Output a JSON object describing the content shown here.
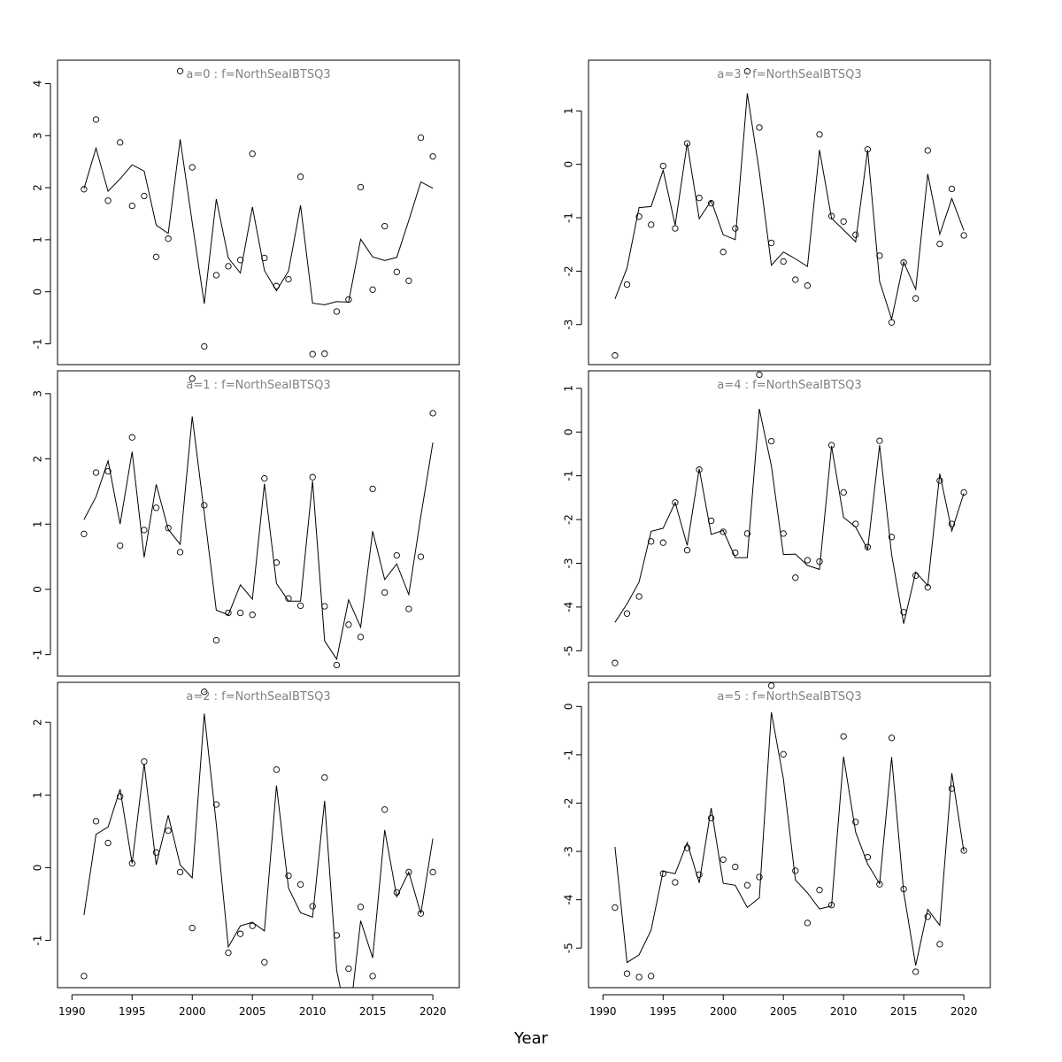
{
  "figure": {
    "xlabel": "Year"
  },
  "chart_data": [
    {
      "type": "line",
      "title": "a=0  :  f=NorthSeaIBTSQ3",
      "x": [
        1991,
        1992,
        1993,
        1994,
        1995,
        1996,
        1997,
        1998,
        1999,
        2000,
        2001,
        2002,
        2003,
        2004,
        2005,
        2006,
        2007,
        2008,
        2009,
        2010,
        2011,
        2012,
        2013,
        2014,
        2015,
        2016,
        2017,
        2018,
        2019,
        2020
      ],
      "series": [
        {
          "kind": "line",
          "values": [
            1.98,
            2.76,
            1.93,
            2.17,
            2.44,
            2.32,
            1.28,
            1.12,
            2.93,
            1.33,
            -0.23,
            1.78,
            0.65,
            0.36,
            1.63,
            0.41,
            0.02,
            0.4,
            1.66,
            -0.22,
            -0.25,
            -0.19,
            -0.2,
            1.01,
            0.67,
            0.6,
            0.66,
            1.37,
            2.11,
            1.99
          ]
        },
        {
          "kind": "points",
          "values": [
            1.97,
            3.31,
            1.75,
            2.87,
            1.65,
            1.84,
            0.67,
            1.02,
            4.24,
            2.39,
            -1.05,
            0.32,
            0.49,
            0.61,
            2.65,
            0.65,
            0.11,
            0.24,
            2.21,
            -1.2,
            -1.19,
            -0.38,
            -0.15,
            2.01,
            0.04,
            1.26,
            0.38,
            0.21,
            2.96,
            2.6
          ]
        }
      ],
      "xlim": [
        1988.8,
        2022.2
      ],
      "ylim": [
        -1.4,
        4.45
      ],
      "yticks": [
        -1,
        0,
        1,
        2,
        3,
        4
      ],
      "grid": false
    },
    {
      "type": "line",
      "title": "a=3  :  f=NorthSeaIBTSQ3",
      "x": [
        1991,
        1992,
        1993,
        1994,
        1995,
        1996,
        1997,
        1998,
        1999,
        2000,
        2001,
        2002,
        2003,
        2004,
        2005,
        2006,
        2007,
        2008,
        2009,
        2010,
        2011,
        2012,
        2013,
        2014,
        2015,
        2016,
        2017,
        2018,
        2019,
        2020
      ],
      "series": [
        {
          "kind": "line",
          "values": [
            -2.52,
            -1.94,
            -0.81,
            -0.79,
            -0.11,
            -1.14,
            0.39,
            -1.02,
            -0.68,
            -1.32,
            -1.41,
            1.33,
            -0.14,
            -1.89,
            -1.64,
            -1.77,
            -1.91,
            0.27,
            -1.01,
            -1.23,
            -1.45,
            0.27,
            -2.19,
            -2.9,
            -1.83,
            -2.34,
            -0.18,
            -1.31,
            -0.64,
            -1.24
          ]
        },
        {
          "kind": "points",
          "values": [
            -3.58,
            -2.25,
            -0.98,
            -1.13,
            -0.03,
            -1.2,
            0.39,
            -0.63,
            -0.73,
            -1.64,
            -1.2,
            1.74,
            0.69,
            -1.47,
            -1.82,
            -2.16,
            -2.27,
            0.56,
            -0.97,
            -1.07,
            -1.32,
            0.28,
            -1.71,
            -2.96,
            -1.84,
            -2.51,
            0.26,
            -1.49,
            -0.46,
            -1.33
          ]
        }
      ],
      "xlim": [
        1988.8,
        2022.2
      ],
      "ylim": [
        -3.75,
        1.95
      ],
      "yticks": [
        -3,
        -2,
        -1,
        0,
        1
      ],
      "grid": false
    },
    {
      "type": "line",
      "title": "a=1  :  f=NorthSeaIBTSQ3",
      "x": [
        1991,
        1992,
        1993,
        1994,
        1995,
        1996,
        1997,
        1998,
        1999,
        2000,
        2001,
        2002,
        2003,
        2004,
        2005,
        2006,
        2007,
        2008,
        2009,
        2010,
        2011,
        2012,
        2013,
        2014,
        2015,
        2016,
        2017,
        2018,
        2019,
        2020
      ],
      "series": [
        {
          "kind": "line",
          "values": [
            1.07,
            1.42,
            1.97,
            1.0,
            2.11,
            0.49,
            1.61,
            0.92,
            0.69,
            2.65,
            1.17,
            -0.32,
            -0.39,
            0.07,
            -0.15,
            1.62,
            0.09,
            -0.18,
            -0.18,
            1.66,
            -0.79,
            -1.07,
            -0.16,
            -0.58,
            0.89,
            0.15,
            0.39,
            -0.08,
            1.12,
            2.25
          ]
        },
        {
          "kind": "points",
          "values": [
            0.85,
            1.79,
            1.81,
            0.67,
            2.33,
            0.91,
            1.25,
            0.94,
            0.57,
            3.23,
            1.29,
            -0.78,
            -0.36,
            -0.36,
            -0.39,
            1.7,
            0.41,
            -0.14,
            -0.25,
            1.72,
            -0.26,
            -1.16,
            -0.54,
            -0.73,
            1.54,
            -0.05,
            0.52,
            -0.3,
            0.5,
            2.7
          ]
        }
      ],
      "xlim": [
        1988.8,
        2022.2
      ],
      "ylim": [
        -1.33,
        3.35
      ],
      "yticks": [
        -1,
        0,
        1,
        2,
        3
      ],
      "grid": false
    },
    {
      "type": "line",
      "title": "a=4  :  f=NorthSeaIBTSQ3",
      "x": [
        1991,
        1992,
        1993,
        1994,
        1995,
        1996,
        1997,
        1998,
        1999,
        2000,
        2001,
        2002,
        2003,
        2004,
        2005,
        2006,
        2007,
        2008,
        2009,
        2010,
        2011,
        2012,
        2013,
        2014,
        2015,
        2016,
        2017,
        2018,
        2019,
        2020
      ],
      "series": [
        {
          "kind": "line",
          "values": [
            -4.35,
            -3.93,
            -3.43,
            -2.27,
            -2.2,
            -1.61,
            -2.59,
            -0.84,
            -2.34,
            -2.25,
            -2.87,
            -2.87,
            0.53,
            -0.77,
            -2.8,
            -2.79,
            -3.05,
            -3.14,
            -0.32,
            -1.95,
            -2.17,
            -2.68,
            -0.3,
            -2.8,
            -4.38,
            -3.2,
            -3.51,
            -0.95,
            -2.26,
            -1.4
          ]
        },
        {
          "kind": "points",
          "values": [
            -5.28,
            -4.15,
            -3.76,
            -2.5,
            -2.53,
            -1.61,
            -2.7,
            -0.86,
            -2.03,
            -2.28,
            -2.76,
            -2.32,
            1.31,
            -0.21,
            -2.32,
            -3.33,
            -2.93,
            -2.96,
            -0.3,
            -1.38,
            -2.1,
            -2.63,
            -0.2,
            -2.4,
            -4.12,
            -3.28,
            -3.55,
            -1.11,
            -2.1,
            -1.38
          ]
        }
      ],
      "xlim": [
        1988.8,
        2022.2
      ],
      "ylim": [
        -5.58,
        1.4
      ],
      "yticks": [
        -5,
        -4,
        -3,
        -2,
        -1,
        0,
        1
      ],
      "grid": false
    },
    {
      "type": "line",
      "title": "a=2  :  f=NorthSeaIBTSQ3",
      "x": [
        1991,
        1992,
        1993,
        1994,
        1995,
        1996,
        1997,
        1998,
        1999,
        2000,
        2001,
        2002,
        2003,
        2004,
        2005,
        2006,
        2007,
        2008,
        2009,
        2010,
        2011,
        2012,
        2013,
        2014,
        2015,
        2016,
        2017,
        2018,
        2019,
        2020
      ],
      "series": [
        {
          "kind": "line",
          "values": [
            -0.65,
            0.46,
            0.56,
            1.08,
            0.06,
            1.43,
            0.04,
            0.72,
            0.04,
            -0.14,
            2.12,
            0.6,
            -1.09,
            -0.8,
            -0.75,
            -0.87,
            1.13,
            -0.28,
            -0.62,
            -0.68,
            0.92,
            -1.41,
            -2.2,
            -0.73,
            -1.24,
            0.52,
            -0.4,
            -0.06,
            -0.63,
            0.4
          ]
        },
        {
          "kind": "points",
          "values": [
            -1.49,
            0.64,
            0.34,
            0.98,
            0.06,
            1.46,
            0.21,
            0.51,
            -0.06,
            -0.83,
            2.42,
            0.87,
            -1.17,
            -0.91,
            -0.8,
            -1.3,
            1.35,
            -0.11,
            -0.23,
            -0.53,
            1.24,
            -0.93,
            -1.39,
            -0.54,
            -1.49,
            0.8,
            -0.34,
            -0.06,
            -0.63,
            -0.06
          ]
        }
      ],
      "xlim": [
        1988.8,
        2022.2
      ],
      "ylim": [
        -1.65,
        2.55
      ],
      "yticks": [
        -1,
        0,
        1,
        2
      ],
      "grid": false
    },
    {
      "type": "line",
      "title": "a=5  :  f=NorthSeaIBTSQ3",
      "x": [
        1991,
        1992,
        1993,
        1994,
        1995,
        1996,
        1997,
        1998,
        1999,
        2000,
        2001,
        2002,
        2003,
        2004,
        2005,
        2006,
        2007,
        2008,
        2009,
        2010,
        2011,
        2012,
        2013,
        2014,
        2015,
        2016,
        2017,
        2018,
        2019,
        2020
      ],
      "series": [
        {
          "kind": "line",
          "values": [
            -2.91,
            -5.3,
            -5.14,
            -4.63,
            -3.41,
            -3.46,
            -2.82,
            -3.65,
            -2.1,
            -3.66,
            -3.7,
            -4.16,
            -3.96,
            -0.12,
            -1.5,
            -3.59,
            -3.86,
            -4.19,
            -4.13,
            -1.04,
            -2.6,
            -3.26,
            -3.67,
            -1.05,
            -3.84,
            -5.36,
            -4.2,
            -4.53,
            -1.38,
            -3.0
          ]
        },
        {
          "kind": "points",
          "values": [
            -4.16,
            -5.53,
            -5.6,
            -5.58,
            -3.46,
            -3.64,
            -2.93,
            -3.48,
            -2.31,
            -3.17,
            -3.32,
            -3.7,
            -3.53,
            0.43,
            -0.99,
            -3.4,
            -4.48,
            -3.8,
            -4.11,
            -0.62,
            -2.39,
            -3.12,
            -3.68,
            -0.65,
            -3.78,
            -5.49,
            -4.35,
            -4.92,
            -1.7,
            -2.98
          ]
        }
      ],
      "xlim": [
        1988.8,
        2022.2
      ],
      "ylim": [
        -5.82,
        0.5
      ],
      "yticks": [
        -5,
        -4,
        -3,
        -2,
        -1,
        0
      ],
      "grid": false
    }
  ]
}
